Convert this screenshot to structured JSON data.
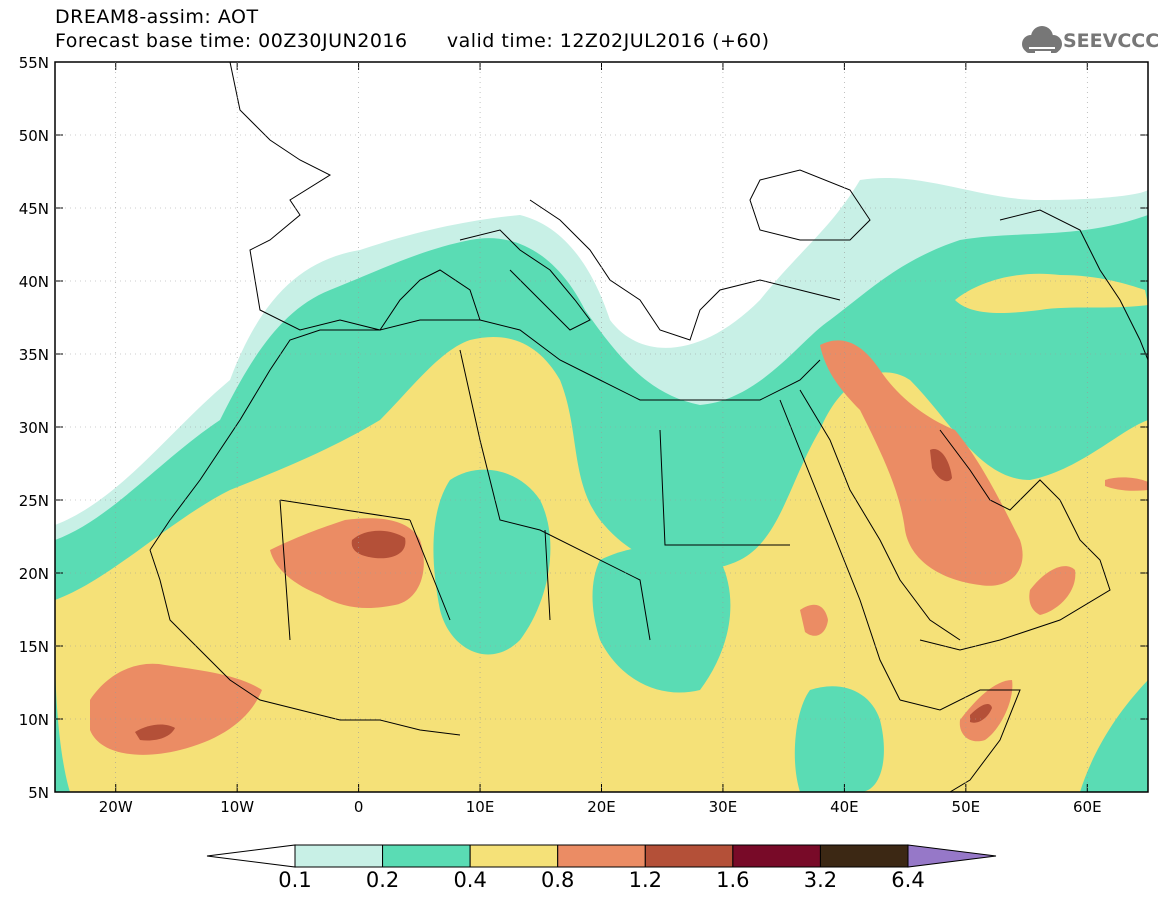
{
  "header": {
    "title": "DREAM8-assim: AOT",
    "forecast_label": "Forecast base time: 00Z30JUN2016",
    "valid_label": "valid time: 12Z02JUL2016 (+60)"
  },
  "logo": {
    "text": "SEEVCCC",
    "icon": "cloud-icon"
  },
  "map": {
    "lon_range": [
      -25,
      65
    ],
    "lat_range": [
      5,
      55
    ],
    "lat_ticks": [
      {
        "value": 55,
        "label": "55N"
      },
      {
        "value": 50,
        "label": "50N"
      },
      {
        "value": 45,
        "label": "45N"
      },
      {
        "value": 40,
        "label": "40N"
      },
      {
        "value": 35,
        "label": "35N"
      },
      {
        "value": 30,
        "label": "30N"
      },
      {
        "value": 25,
        "label": "25N"
      },
      {
        "value": 20,
        "label": "20N"
      },
      {
        "value": 15,
        "label": "15N"
      },
      {
        "value": 10,
        "label": "10N"
      },
      {
        "value": 5,
        "label": "5N"
      }
    ],
    "lon_ticks": [
      {
        "value": -20,
        "label": "20W"
      },
      {
        "value": -10,
        "label": "10W"
      },
      {
        "value": 0,
        "label": "0"
      },
      {
        "value": 10,
        "label": "10E"
      },
      {
        "value": 20,
        "label": "20E"
      },
      {
        "value": 30,
        "label": "30E"
      },
      {
        "value": 40,
        "label": "40E"
      },
      {
        "value": 50,
        "label": "50E"
      },
      {
        "value": 60,
        "label": "60E"
      }
    ]
  },
  "colorbar": {
    "levels": [
      "0.1",
      "0.2",
      "0.4",
      "0.8",
      "1.2",
      "1.6",
      "3.2",
      "6.4"
    ],
    "colors": [
      "#ffffff",
      "#c8f0e6",
      "#5adcb4",
      "#f5e178",
      "#eb8c64",
      "#b45038",
      "#780a28",
      "#3c2814",
      "#9678c8"
    ]
  }
}
